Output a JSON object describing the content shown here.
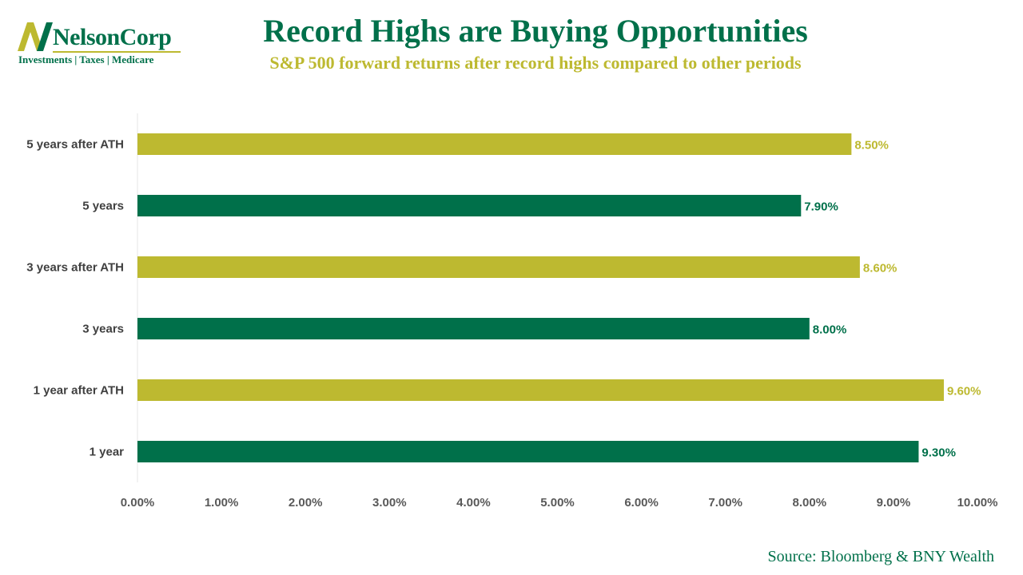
{
  "logo": {
    "name": "NelsonCorp",
    "tagline": "Investments | Taxes | Medicare"
  },
  "colors": {
    "green": "#00704A",
    "olive": "#BDB930"
  },
  "chart_data": {
    "type": "bar",
    "orientation": "horizontal",
    "title": "Record Highs are Buying Opportunities",
    "subtitle": "S&P 500 forward returns after record highs compared to other periods",
    "categories": [
      "5 years after ATH",
      "5 years",
      "3 years after ATH",
      "3 years",
      "1 year after ATH",
      "1 year"
    ],
    "values": [
      8.5,
      7.9,
      8.6,
      8.0,
      9.6,
      9.3
    ],
    "value_labels": [
      "8.50%",
      "7.90%",
      "8.60%",
      "8.00%",
      "9.60%",
      "9.30%"
    ],
    "bar_colors": [
      "#BDB930",
      "#00704A",
      "#BDB930",
      "#00704A",
      "#BDB930",
      "#00704A"
    ],
    "xlim": [
      0,
      10
    ],
    "xticks": [
      0,
      1,
      2,
      3,
      4,
      5,
      6,
      7,
      8,
      9,
      10
    ],
    "xtick_labels": [
      "0.00%",
      "1.00%",
      "2.00%",
      "3.00%",
      "4.00%",
      "5.00%",
      "6.00%",
      "7.00%",
      "8.00%",
      "9.00%",
      "10.00%"
    ],
    "xlabel": "",
    "ylabel": "",
    "grid": false,
    "legend": "none",
    "source": "Source: Bloomberg & BNY Wealth"
  }
}
